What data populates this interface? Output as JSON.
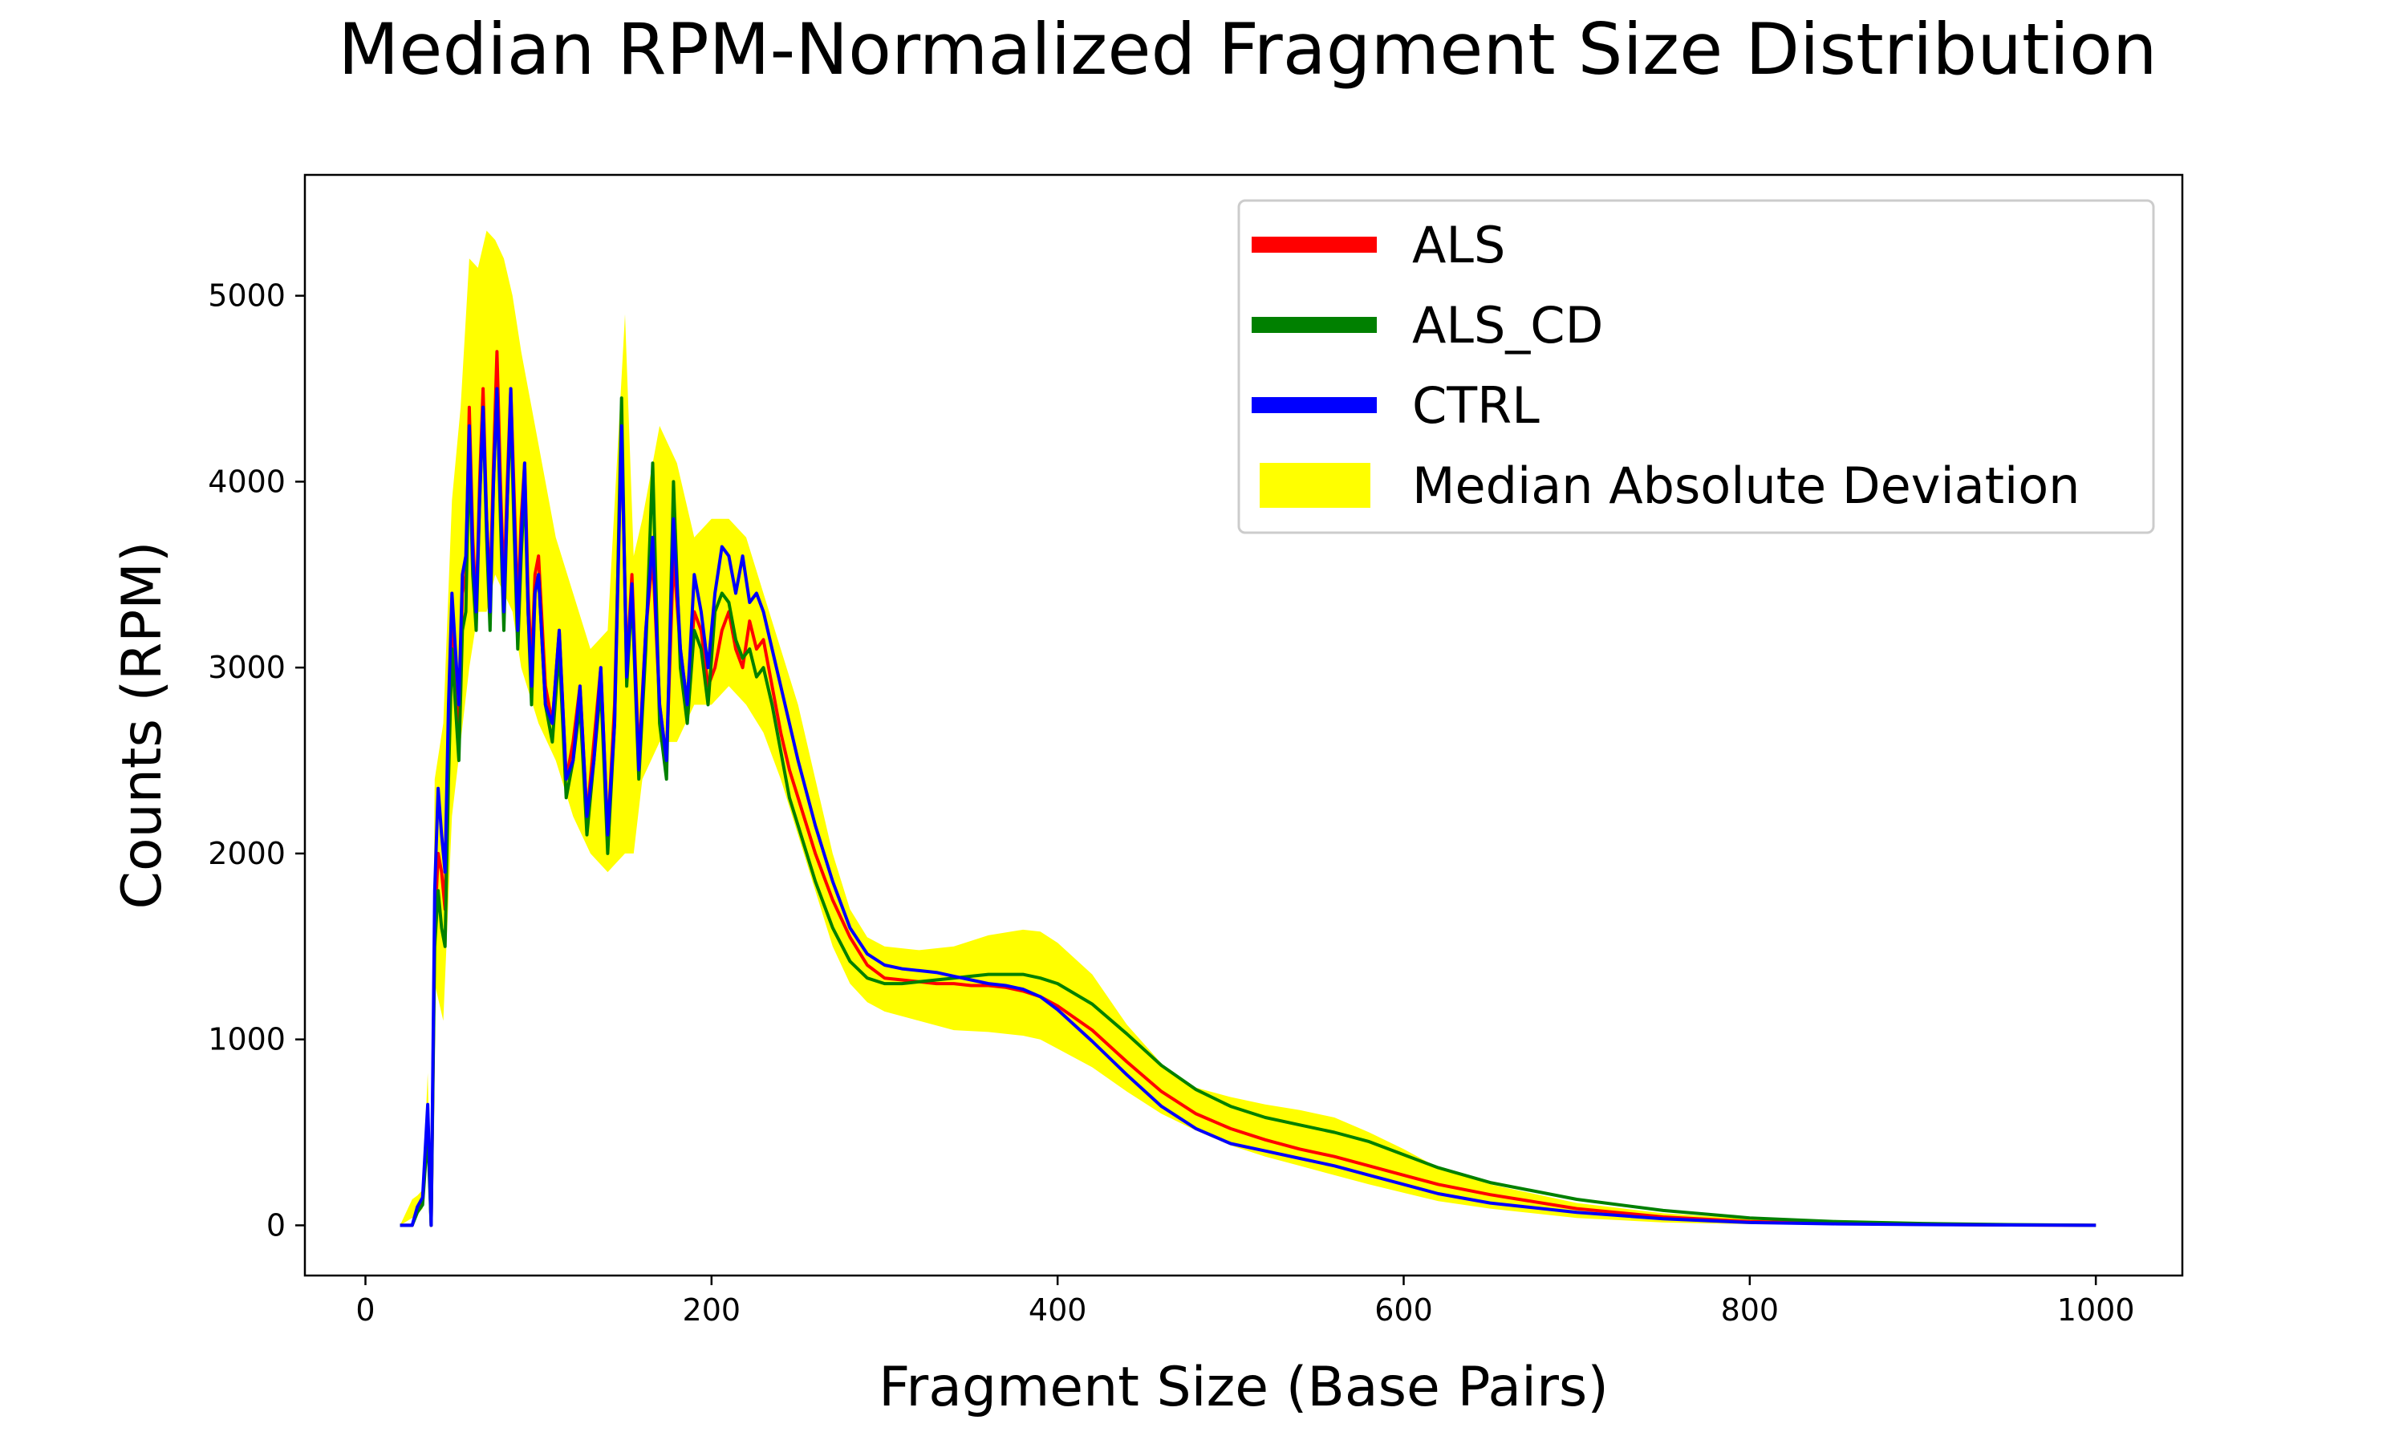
{
  "chart_data": {
    "type": "line",
    "title": "Median RPM-Normalized Fragment Size Distribution",
    "xlabel": "Fragment Size (Base Pairs)",
    "ylabel": "Counts (RPM)",
    "xlim": [
      -35,
      1050
    ],
    "ylim": [
      -270,
      5650
    ],
    "x_ticks": [
      0,
      200,
      400,
      600,
      800,
      1000
    ],
    "y_ticks": [
      0,
      1000,
      2000,
      3000,
      4000,
      5000
    ],
    "grid": false,
    "legend_position": "top-right",
    "band": {
      "name": "Median Absolute Deviation",
      "color": "#ffff00",
      "x": [
        20,
        27,
        30,
        33,
        36,
        38,
        40,
        45,
        50,
        55,
        60,
        65,
        70,
        75,
        80,
        85,
        90,
        100,
        110,
        120,
        130,
        140,
        150,
        155,
        160,
        170,
        180,
        190,
        200,
        210,
        220,
        230,
        240,
        250,
        260,
        270,
        280,
        290,
        300,
        320,
        340,
        360,
        380,
        390,
        400,
        420,
        440,
        460,
        480,
        500,
        520,
        540,
        560,
        580,
        600,
        620,
        650,
        700,
        750,
        800,
        850,
        900,
        950,
        1000
      ],
      "lower": [
        0,
        40,
        60,
        90,
        380,
        0,
        1300,
        1100,
        2200,
        2600,
        3000,
        3300,
        3300,
        3500,
        3400,
        3300,
        3000,
        2700,
        2500,
        2200,
        2000,
        1900,
        2000,
        2000,
        2400,
        2600,
        2600,
        2800,
        2800,
        2900,
        2800,
        2650,
        2400,
        2100,
        1800,
        1500,
        1300,
        1200,
        1150,
        1100,
        1050,
        1040,
        1020,
        1000,
        950,
        850,
        720,
        600,
        510,
        430,
        370,
        320,
        270,
        220,
        175,
        130,
        90,
        40,
        15,
        6,
        3,
        2,
        1,
        0
      ],
      "upper": [
        0,
        140,
        160,
        190,
        820,
        0,
        2400,
        2700,
        3900,
        4400,
        5200,
        5150,
        5350,
        5300,
        5200,
        5000,
        4700,
        4200,
        3700,
        3400,
        3100,
        3200,
        4900,
        3600,
        3800,
        4300,
        4100,
        3700,
        3800,
        3800,
        3700,
        3400,
        3100,
        2800,
        2400,
        2000,
        1700,
        1550,
        1500,
        1480,
        1500,
        1560,
        1590,
        1580,
        1520,
        1350,
        1080,
        870,
        740,
        690,
        650,
        620,
        580,
        500,
        410,
        310,
        220,
        120,
        65,
        35,
        17,
        8,
        4,
        1
      ]
    },
    "series": [
      {
        "name": "ALS",
        "color": "#ff0000",
        "x": [
          20,
          27,
          30,
          33,
          36,
          38,
          40,
          42,
          44,
          46,
          48,
          50,
          52,
          54,
          56,
          58,
          60,
          62,
          64,
          66,
          68,
          70,
          72,
          74,
          76,
          78,
          80,
          82,
          84,
          86,
          88,
          90,
          92,
          94,
          96,
          98,
          100,
          104,
          108,
          112,
          116,
          120,
          124,
          128,
          132,
          136,
          140,
          144,
          148,
          151,
          154,
          158,
          162,
          166,
          170,
          174,
          178,
          182,
          186,
          190,
          194,
          198,
          202,
          206,
          210,
          214,
          218,
          222,
          226,
          230,
          235,
          240,
          245,
          250,
          260,
          270,
          280,
          290,
          300,
          310,
          320,
          330,
          340,
          350,
          360,
          370,
          380,
          390,
          400,
          420,
          440,
          460,
          480,
          500,
          520,
          540,
          560,
          580,
          600,
          620,
          650,
          700,
          750,
          800,
          850,
          900,
          950,
          1000
        ],
        "y": [
          0,
          0,
          80,
          130,
          600,
          0,
          1600,
          2000,
          1900,
          1700,
          2600,
          3300,
          3000,
          2700,
          3400,
          3500,
          4400,
          3700,
          3300,
          4000,
          4500,
          3800,
          3400,
          4100,
          4700,
          4000,
          3400,
          4000,
          4500,
          3900,
          3300,
          3800,
          4100,
          3400,
          3000,
          3500,
          3600,
          2900,
          2700,
          3200,
          2400,
          2600,
          2900,
          2200,
          2600,
          3000,
          2100,
          2800,
          4300,
          3000,
          3500,
          2500,
          3200,
          3600,
          2800,
          2500,
          3600,
          3100,
          2800,
          3300,
          3200,
          2900,
          3000,
          3200,
          3300,
          3100,
          3000,
          3250,
          3100,
          3150,
          2900,
          2650,
          2450,
          2300,
          2000,
          1750,
          1550,
          1400,
          1330,
          1320,
          1310,
          1300,
          1300,
          1290,
          1290,
          1280,
          1260,
          1230,
          1180,
          1050,
          880,
          720,
          600,
          520,
          460,
          410,
          370,
          320,
          270,
          220,
          165,
          90,
          45,
          20,
          10,
          5,
          2,
          0
        ]
      },
      {
        "name": "ALS_CD",
        "color": "#008000",
        "x": [
          20,
          27,
          30,
          33,
          36,
          38,
          40,
          42,
          44,
          46,
          48,
          50,
          52,
          54,
          56,
          58,
          60,
          62,
          64,
          66,
          68,
          70,
          72,
          74,
          76,
          78,
          80,
          82,
          84,
          86,
          88,
          90,
          92,
          94,
          96,
          98,
          100,
          104,
          108,
          112,
          116,
          120,
          124,
          128,
          132,
          136,
          140,
          144,
          148,
          151,
          154,
          158,
          162,
          166,
          170,
          174,
          178,
          182,
          186,
          190,
          194,
          198,
          202,
          206,
          210,
          214,
          218,
          222,
          226,
          230,
          235,
          240,
          245,
          250,
          260,
          270,
          280,
          290,
          300,
          310,
          320,
          330,
          340,
          350,
          360,
          370,
          380,
          390,
          400,
          420,
          440,
          460,
          480,
          500,
          520,
          540,
          560,
          580,
          600,
          620,
          650,
          700,
          750,
          800,
          850,
          900,
          950,
          1000
        ],
        "y": [
          0,
          0,
          70,
          110,
          500,
          0,
          1500,
          1800,
          1600,
          1500,
          2400,
          3100,
          2800,
          2500,
          3200,
          3300,
          4200,
          3500,
          3200,
          3900,
          4400,
          3700,
          3200,
          4000,
          4500,
          3800,
          3200,
          3900,
          4400,
          3700,
          3100,
          3600,
          4000,
          3300,
          2800,
          3400,
          3500,
          2800,
          2600,
          3100,
          2300,
          2500,
          2800,
          2100,
          2500,
          2900,
          2000,
          2700,
          4450,
          2900,
          3400,
          2400,
          3100,
          4100,
          2700,
          2400,
          4000,
          3000,
          2700,
          3200,
          3100,
          2800,
          3300,
          3400,
          3350,
          3150,
          3050,
          3100,
          2950,
          3000,
          2800,
          2550,
          2300,
          2150,
          1850,
          1600,
          1420,
          1330,
          1300,
          1300,
          1310,
          1320,
          1330,
          1340,
          1350,
          1350,
          1350,
          1330,
          1300,
          1190,
          1030,
          860,
          730,
          640,
          580,
          540,
          500,
          450,
          380,
          310,
          230,
          140,
          80,
          40,
          20,
          10,
          4,
          0
        ]
      },
      {
        "name": "CTRL",
        "color": "#0000ff",
        "x": [
          20,
          27,
          30,
          33,
          36,
          38,
          40,
          42,
          44,
          46,
          48,
          50,
          52,
          54,
          56,
          58,
          60,
          62,
          64,
          66,
          68,
          70,
          72,
          74,
          76,
          78,
          80,
          82,
          84,
          86,
          88,
          90,
          92,
          94,
          96,
          98,
          100,
          104,
          108,
          112,
          116,
          120,
          124,
          128,
          132,
          136,
          140,
          144,
          148,
          151,
          154,
          158,
          162,
          166,
          170,
          174,
          178,
          182,
          186,
          190,
          194,
          198,
          202,
          206,
          210,
          214,
          218,
          222,
          226,
          230,
          235,
          240,
          245,
          250,
          260,
          270,
          280,
          290,
          300,
          310,
          320,
          330,
          340,
          350,
          360,
          370,
          380,
          390,
          400,
          420,
          440,
          460,
          480,
          500,
          520,
          540,
          560,
          580,
          600,
          620,
          650,
          700,
          750,
          800,
          850,
          900,
          950,
          1000
        ],
        "y": [
          0,
          0,
          100,
          150,
          650,
          0,
          1800,
          2350,
          2100,
          1900,
          2800,
          3400,
          3100,
          2800,
          3500,
          3600,
          4300,
          3600,
          3300,
          3900,
          4400,
          3800,
          3300,
          4000,
          4500,
          3900,
          3300,
          3900,
          4500,
          3800,
          3200,
          3700,
          4100,
          3300,
          2900,
          3400,
          3500,
          2800,
          2700,
          3200,
          2400,
          2500,
          2900,
          2200,
          2500,
          3000,
          2100,
          2700,
          4300,
          2950,
          3450,
          2450,
          3200,
          3700,
          2800,
          2500,
          3800,
          3100,
          2800,
          3500,
          3300,
          3000,
          3400,
          3650,
          3600,
          3400,
          3600,
          3350,
          3400,
          3300,
          3100,
          2900,
          2700,
          2500,
          2150,
          1850,
          1600,
          1460,
          1400,
          1380,
          1370,
          1360,
          1340,
          1320,
          1300,
          1290,
          1270,
          1230,
          1160,
          990,
          810,
          640,
          520,
          440,
          400,
          360,
          320,
          270,
          220,
          170,
          120,
          70,
          35,
          15,
          8,
          4,
          2,
          0
        ]
      }
    ]
  }
}
